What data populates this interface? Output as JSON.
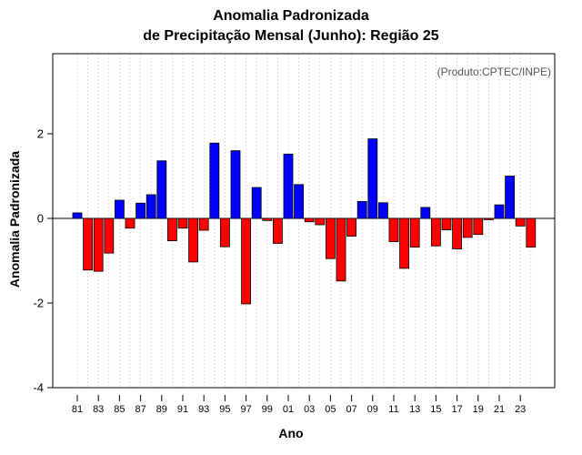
{
  "chart_data": {
    "type": "bar",
    "title": [
      "Anomalia Padronizada",
      "de Precipitação Mensal (Junho): Região 25"
    ],
    "annotation": "(Produto:CPTEC/INPE)",
    "xlabel": "Ano",
    "ylabel": "Anomalia Padronizada",
    "ylim": [
      -4,
      4
    ],
    "yticks": [
      -4,
      -2,
      0,
      2
    ],
    "positive_color": "#0000ff",
    "negative_color": "#ff0000",
    "categories": [
      "81",
      "82",
      "83",
      "84",
      "85",
      "86",
      "87",
      "88",
      "89",
      "90",
      "91",
      "92",
      "93",
      "94",
      "95",
      "96",
      "97",
      "98",
      "99",
      "00",
      "01",
      "02",
      "03",
      "04",
      "05",
      "06",
      "07",
      "08",
      "09",
      "10",
      "11",
      "12",
      "13",
      "14",
      "15",
      "16",
      "17",
      "18",
      "19",
      "20",
      "21",
      "22",
      "23",
      "24"
    ],
    "xtick_labels": [
      "81",
      "83",
      "85",
      "87",
      "89",
      "91",
      "93",
      "95",
      "97",
      "99",
      "01",
      "03",
      "05",
      "07",
      "09",
      "11",
      "13",
      "15",
      "17",
      "19",
      "21",
      "23"
    ],
    "values": [
      0.13,
      -1.22,
      -1.25,
      -0.82,
      0.43,
      -0.23,
      0.36,
      0.56,
      1.36,
      -0.53,
      -0.23,
      -1.03,
      -0.28,
      1.78,
      -0.67,
      1.6,
      -2.02,
      0.73,
      -0.05,
      -0.59,
      1.52,
      0.8,
      -0.08,
      -0.15,
      -0.95,
      -1.48,
      -0.42,
      0.4,
      1.88,
      0.37,
      -0.55,
      -1.18,
      -0.68,
      0.26,
      -0.65,
      -0.27,
      -0.72,
      -0.45,
      -0.38,
      -0.03,
      0.32,
      1.0,
      -0.18,
      -0.68
    ]
  }
}
